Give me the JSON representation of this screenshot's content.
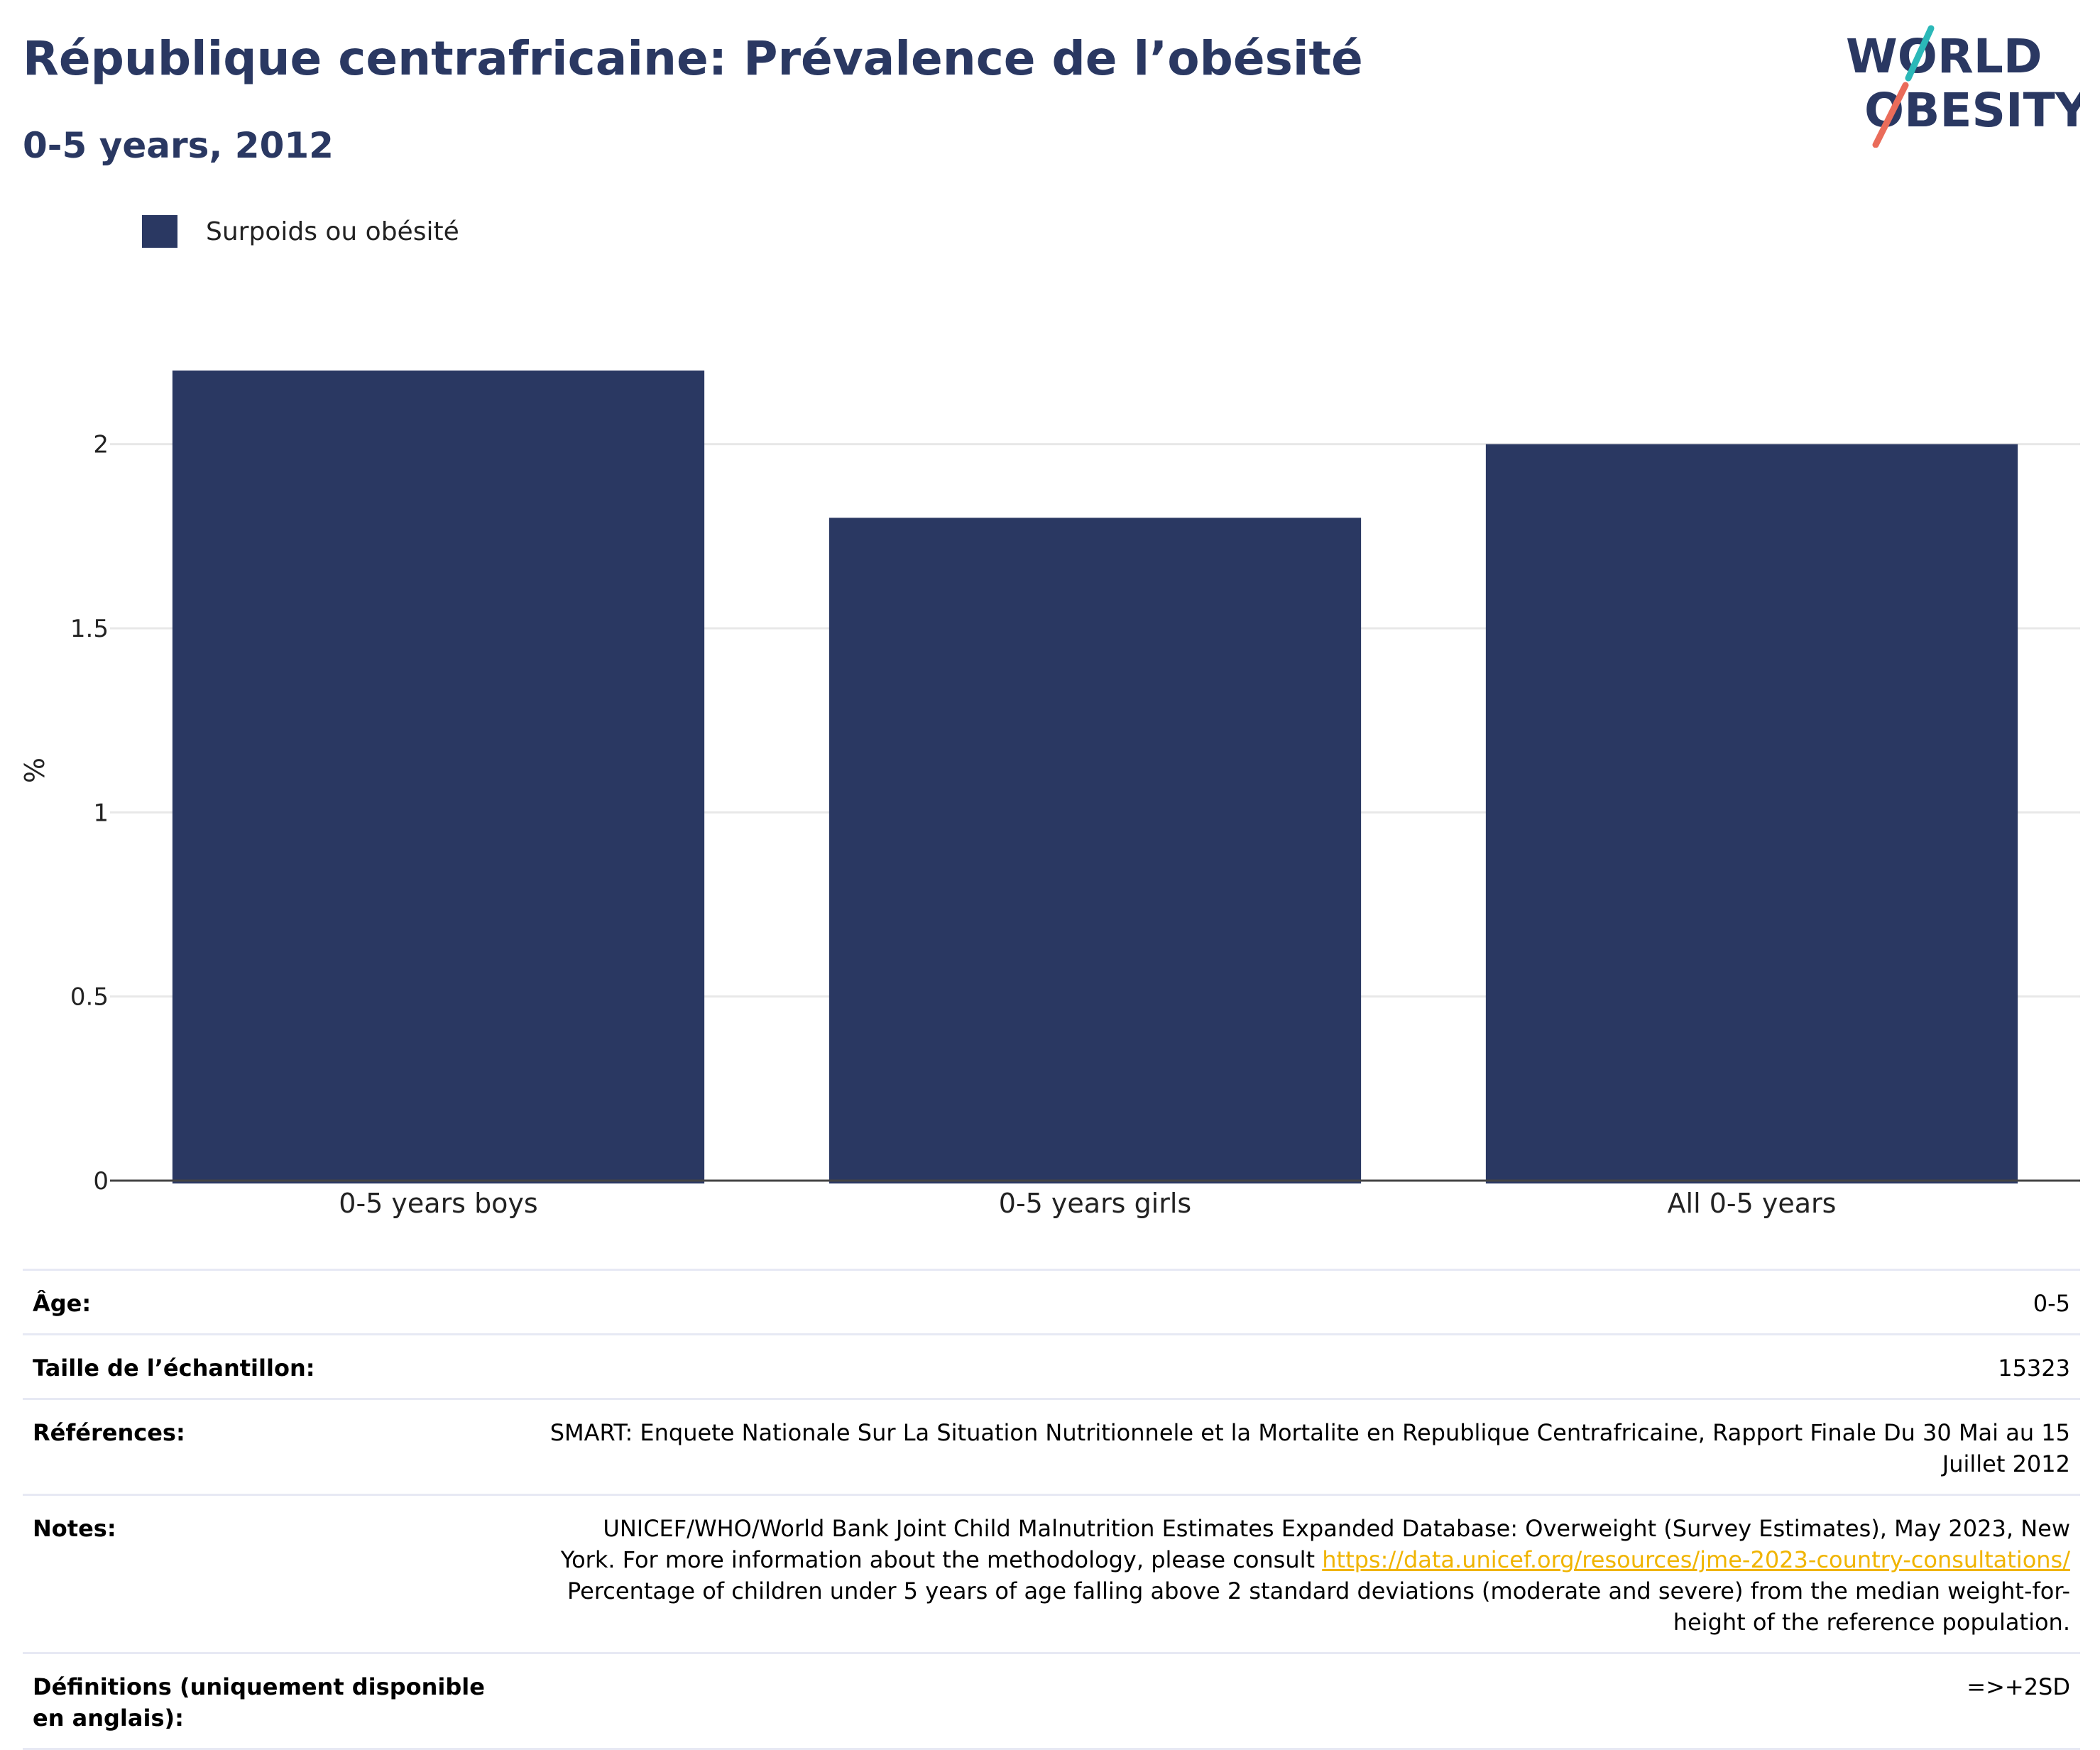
{
  "header": {
    "title": "République centrafricaine: Prévalence de l’obésité",
    "subtitle": "0-5 years, 2012"
  },
  "logo": {
    "line1": "WORLD",
    "line2": "OBESITY"
  },
  "colors": {
    "bar": "#2a3862",
    "title": "#2a3862",
    "logo_teal": "#2bb8b8",
    "logo_coral": "#ea6c5a",
    "link": "#f0b400"
  },
  "chart_data": {
    "type": "bar",
    "categories": [
      "0-5 years boys",
      "0-5 years girls",
      "All 0-5 years"
    ],
    "series": [
      {
        "name": "Surpoids ou obésité",
        "values": [
          2.2,
          1.8,
          2.0
        ]
      }
    ],
    "ylabel": "%",
    "xlabel": "",
    "ylim": [
      0,
      2.3
    ],
    "yticks": [
      0,
      0.5,
      1,
      1.5,
      2
    ],
    "ytick_labels": [
      "0",
      "0.5",
      "1",
      "1.5",
      "2"
    ],
    "grid": true,
    "legend_position": "top-left"
  },
  "info_table": {
    "age": {
      "label": "Âge:",
      "value": "0-5"
    },
    "sample": {
      "label": "Taille de l’échantillon:",
      "value": "15323"
    },
    "references": {
      "label": "Références:",
      "value": "SMART: Enquete Nationale Sur La Situation Nutritionnele et la Mortalite en Republique Centrafricaine, Rapport Finale Du 30 Mai au 15 Juillet 2012"
    },
    "notes": {
      "label": "Notes:",
      "text_before": "UNICEF/WHO/World Bank Joint Child Malnutrition Estimates Expanded Database: Overweight (Survey Estimates), May 2023, New York. For more information about the methodology, please consult ",
      "link": "https://data.unicef.org/resources/jme-2023-country-consultations/",
      "text_after": " Percentage of children under 5 years of age falling above 2 standard deviations (moderate and severe) from the median weight-for-height of the reference population."
    },
    "definitions": {
      "label": "Définitions (uniquement disponible en anglais):",
      "value": "=>+2SD"
    }
  }
}
